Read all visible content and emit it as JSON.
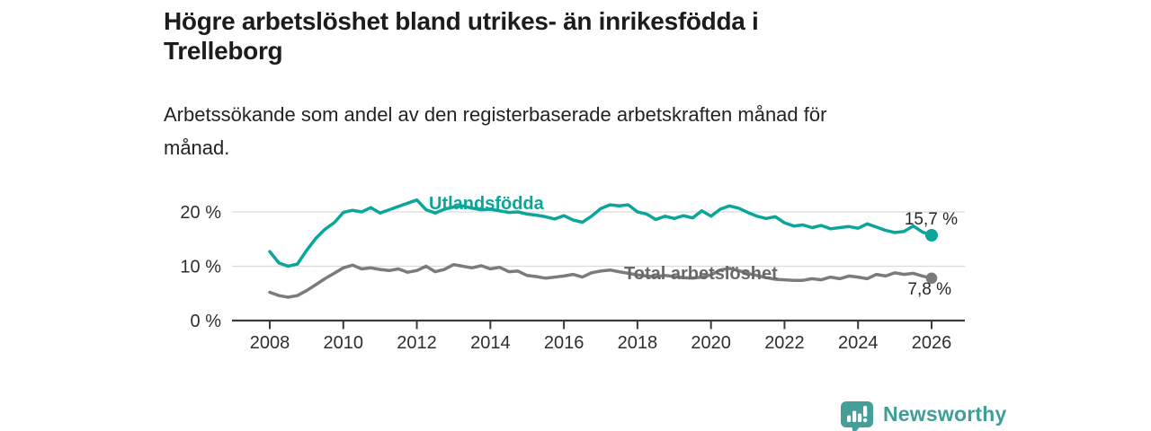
{
  "header": {
    "title_lines": [
      "Högre arbetslöshet bland utrikes- än inrikesfödda i",
      "Trelleborg"
    ],
    "subtitle_lines": [
      "Arbetssökande som andel av den registerbaserade arbetskraften månad för",
      "månad."
    ]
  },
  "branding": {
    "logo_text": "Newsworthy",
    "logo_icon": "chart-speech-bubble",
    "logo_color": "#459f98"
  },
  "chart_data": {
    "type": "line",
    "title": "Högre arbetslöshet bland utrikes- än inrikesfödda i Trelleborg",
    "subtitle": "Arbetssökande som andel av den registerbaserade arbetskraften månad för månad.",
    "xlabel": "",
    "ylabel": "",
    "grid": "horizontal",
    "legend_position": "inline-labels",
    "xlim": [
      2007.0,
      2026.9
    ],
    "ylim": [
      0,
      24
    ],
    "x_ticks": [
      2008,
      2010,
      2012,
      2014,
      2016,
      2018,
      2020,
      2022,
      2024,
      2026
    ],
    "y_ticks": [
      {
        "value": 0,
        "label": "0 %"
      },
      {
        "value": 10,
        "label": "10 %"
      },
      {
        "value": 20,
        "label": "20 %"
      }
    ],
    "x": [
      2008.0,
      2008.25,
      2008.5,
      2008.75,
      2009.0,
      2009.25,
      2009.5,
      2009.75,
      2010.0,
      2010.25,
      2010.5,
      2010.75,
      2011.0,
      2011.25,
      2011.5,
      2011.75,
      2012.0,
      2012.25,
      2012.5,
      2012.75,
      2013.0,
      2013.25,
      2013.5,
      2013.75,
      2014.0,
      2014.25,
      2014.5,
      2014.75,
      2015.0,
      2015.25,
      2015.5,
      2015.75,
      2016.0,
      2016.25,
      2016.5,
      2016.75,
      2017.0,
      2017.25,
      2017.5,
      2017.75,
      2018.0,
      2018.25,
      2018.5,
      2018.75,
      2019.0,
      2019.25,
      2019.5,
      2019.75,
      2020.0,
      2020.25,
      2020.5,
      2020.75,
      2021.0,
      2021.25,
      2021.5,
      2021.75,
      2022.0,
      2022.25,
      2022.5,
      2022.75,
      2023.0,
      2023.25,
      2023.5,
      2023.75,
      2024.0,
      2024.25,
      2024.5,
      2024.75,
      2025.0,
      2025.25,
      2025.5,
      2025.75,
      2026.0
    ],
    "series": [
      {
        "name": "Utlandsfödda",
        "color": "#0aa69b",
        "label_color": "#0aa69b",
        "end_label": "15,7 %",
        "end_value": 15.7,
        "values": [
          12.7,
          10.6,
          10.0,
          10.4,
          12.9,
          15.1,
          16.8,
          18.0,
          19.9,
          20.3,
          20.0,
          20.8,
          19.8,
          20.4,
          21.0,
          21.6,
          22.2,
          20.4,
          19.8,
          20.5,
          20.9,
          21.1,
          20.7,
          20.4,
          20.5,
          20.2,
          19.9,
          20.0,
          19.6,
          19.4,
          19.1,
          18.7,
          19.3,
          18.5,
          18.1,
          19.2,
          20.6,
          21.3,
          21.1,
          21.3,
          20.0,
          19.6,
          18.6,
          19.2,
          18.8,
          19.3,
          18.9,
          20.2,
          19.2,
          20.5,
          21.1,
          20.7,
          19.9,
          19.2,
          18.8,
          19.1,
          18.0,
          17.4,
          17.6,
          17.1,
          17.5,
          16.9,
          17.1,
          17.3,
          17.0,
          17.8,
          17.2,
          16.6,
          16.2,
          16.4,
          17.4,
          16.3,
          15.7
        ]
      },
      {
        "name": "Total arbetslöshet",
        "color": "#7b7b7b",
        "label_color": "#686868",
        "end_label": "7,8 %",
        "end_value": 7.8,
        "values": [
          5.2,
          4.6,
          4.3,
          4.6,
          5.5,
          6.6,
          7.7,
          8.7,
          9.7,
          10.2,
          9.5,
          9.7,
          9.4,
          9.2,
          9.5,
          8.9,
          9.2,
          10.0,
          9.0,
          9.4,
          10.3,
          10.0,
          9.7,
          10.1,
          9.5,
          9.8,
          9.0,
          9.1,
          8.3,
          8.1,
          7.8,
          8.0,
          8.2,
          8.5,
          8.0,
          8.8,
          9.1,
          9.3,
          9.0,
          8.7,
          8.4,
          8.2,
          8.1,
          8.3,
          8.1,
          7.9,
          7.8,
          8.0,
          8.4,
          9.3,
          9.6,
          9.2,
          8.7,
          8.3,
          7.9,
          7.6,
          7.5,
          7.4,
          7.4,
          7.7,
          7.5,
          8.0,
          7.7,
          8.2,
          8.0,
          7.7,
          8.5,
          8.2,
          8.8,
          8.5,
          8.7,
          8.2,
          7.8
        ]
      }
    ]
  }
}
